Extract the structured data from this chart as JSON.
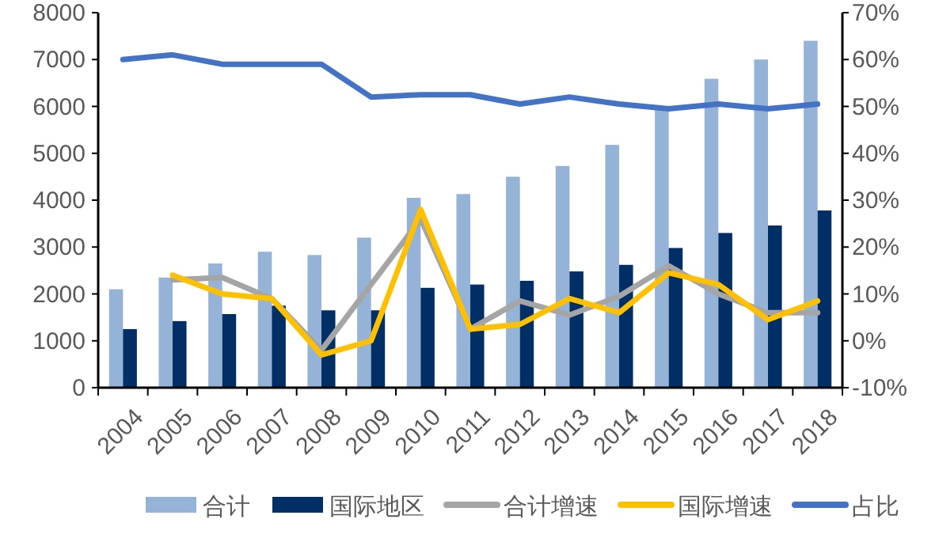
{
  "chart_data": {
    "type": "bar",
    "categories": [
      "2004",
      "2005",
      "2006",
      "2007",
      "2008",
      "2009",
      "2010",
      "2011",
      "2012",
      "2013",
      "2014",
      "2015",
      "2016",
      "2017",
      "2018"
    ],
    "series": [
      {
        "name": "合计",
        "color": "#95b3d7",
        "values": [
          2100,
          2350,
          2650,
          2900,
          2830,
          3200,
          4050,
          4130,
          4500,
          4730,
          5180,
          5950,
          6590,
          7000,
          7400
        ]
      },
      {
        "name": "国际地区",
        "color": "#002f65",
        "values": [
          1250,
          1420,
          1570,
          1750,
          1650,
          1650,
          2130,
          2200,
          2280,
          2480,
          2620,
          2980,
          3300,
          3460,
          3780
        ]
      },
      {
        "name": "合计增速",
        "type": "line",
        "axis": "y2",
        "color": "#a5a5a5",
        "values": [
          null,
          13,
          13.5,
          9,
          -2,
          12,
          26,
          2.5,
          8.5,
          5.5,
          9.5,
          16,
          10,
          6,
          6
        ]
      },
      {
        "name": "国际增速",
        "type": "line",
        "axis": "y2",
        "color": "#ffc000",
        "values": [
          null,
          14,
          10,
          9,
          -3,
          0,
          28,
          2.5,
          3.5,
          9,
          6,
          14.5,
          12,
          4.5,
          8.5
        ]
      },
      {
        "name": "占比",
        "type": "line",
        "axis": "y2",
        "color": "#4472c4",
        "values": [
          60,
          61,
          59,
          59,
          59,
          52,
          52.5,
          52.5,
          50.5,
          52,
          50.5,
          49.5,
          50.5,
          49.5,
          50.5
        ]
      }
    ],
    "ylim": [
      0,
      8000
    ],
    "yticks": [
      0,
      1000,
      2000,
      3000,
      4000,
      5000,
      6000,
      7000,
      8000
    ],
    "y2lim": [
      -10,
      70
    ],
    "y2ticks": [
      {
        "value": -10,
        "label": "-10%"
      },
      {
        "value": 0,
        "label": "0%"
      },
      {
        "value": 10,
        "label": "10%"
      },
      {
        "value": 20,
        "label": "20%"
      },
      {
        "value": 30,
        "label": "30%"
      },
      {
        "value": 40,
        "label": "40%"
      },
      {
        "value": 50,
        "label": "50%"
      },
      {
        "value": 60,
        "label": "60%"
      },
      {
        "value": 70,
        "label": "70%"
      }
    ],
    "grid": false,
    "legend": "bottom"
  }
}
